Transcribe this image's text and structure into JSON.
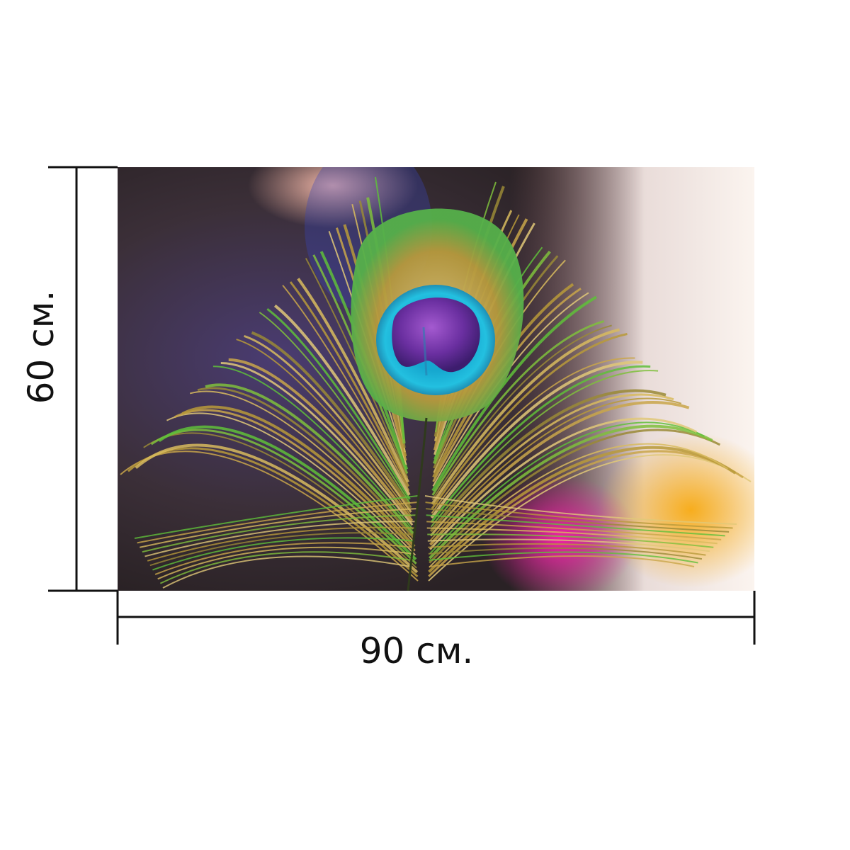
{
  "dimensions": {
    "width_label": "90 см.",
    "height_label": "60 см."
  },
  "photo": {
    "subject_icon": "peacock-feather-icon"
  },
  "colors": {
    "line": "#111111",
    "background": "#ffffff",
    "eye_center": "#6a2fa0",
    "eye_ring": "#1fb2d6",
    "vane_gold": "#b89a3a",
    "vane_green": "#5fbf3a",
    "bokeh_magenta": "#e2189b",
    "bokeh_orange": "#f3a51c"
  }
}
